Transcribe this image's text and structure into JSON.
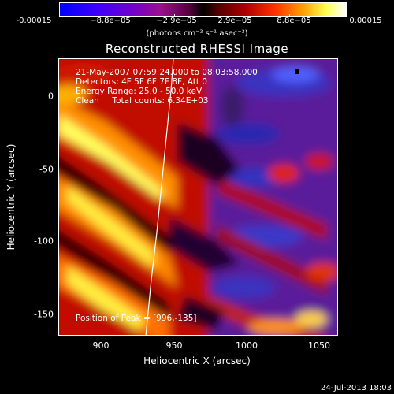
{
  "colorbar": {
    "ticks": [
      "-0.00015",
      "−8.8e−05",
      "−2.9e−05",
      "2.9e−05",
      "8.8e−05",
      "0.00015"
    ],
    "units": "(photons cm⁻² s⁻¹ asec⁻²)"
  },
  "title": "Reconstructed RHESSI Image",
  "info": {
    "line1": "21-May-2007 07:59:24.000 to 08:03:58.000",
    "line2": "Detectors: 4F 5F 6F 7F 8F, Att 0",
    "line3": "Energy Range: 25.0 - 50.0 keV",
    "line4": "Clean     Total counts: 6.34E+03",
    "peak": "Position of Peak = [996,-135]"
  },
  "axes": {
    "xlabel": "Heliocentric X (arcsec)",
    "ylabel": "Heliocentric Y (arcsec)",
    "xticks": [
      "900",
      "950",
      "1000",
      "1050"
    ],
    "yticks": [
      "0",
      "-50",
      "-100",
      "-150"
    ]
  },
  "footer_date": "24-Jul-2013 18:03",
  "colors": {
    "limb_line": "#ffffff",
    "peak_marker": "#000000"
  }
}
